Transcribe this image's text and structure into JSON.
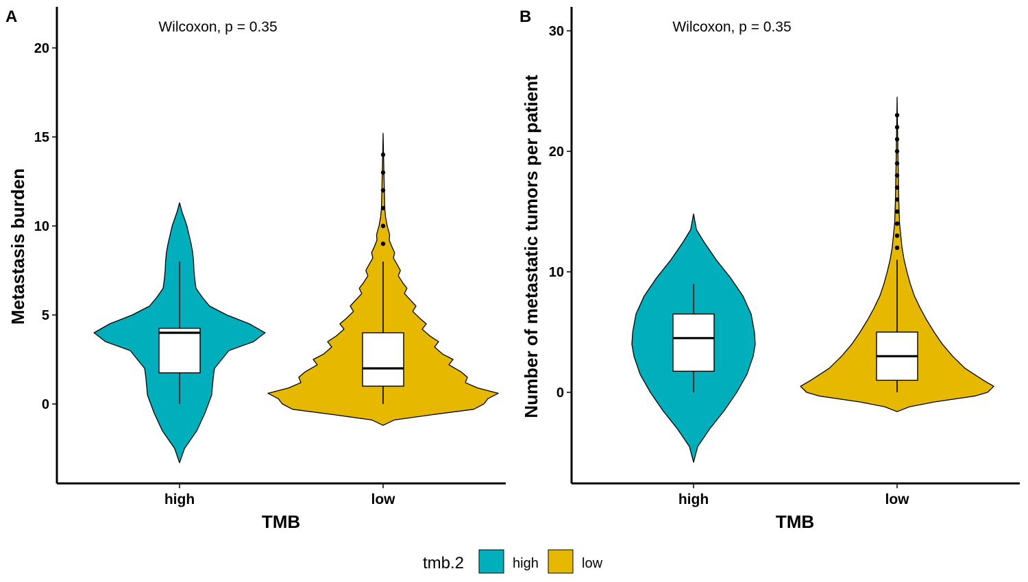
{
  "chart_data": [
    {
      "panel_label": "A",
      "type": "violin",
      "annotation": "Wilcoxon, p = 0.35",
      "xlabel": "TMB",
      "ylabel": "Metastasis burden",
      "categories": [
        "high",
        "low"
      ],
      "yticks": [
        0,
        5,
        10,
        15,
        20
      ],
      "ylim": [
        -4.5,
        22.5
      ],
      "groups": [
        {
          "name": "high",
          "color": "#00AFBB",
          "box": {
            "min": 0,
            "q1": 1.75,
            "median": 4,
            "q3": 4.25,
            "max": 8
          },
          "outliers": [],
          "violin": [
            [
              -3.3,
              0.0
            ],
            [
              -2.5,
              0.12
            ],
            [
              -1.5,
              0.42
            ],
            [
              -0.5,
              0.62
            ],
            [
              0,
              0.7
            ],
            [
              0.5,
              0.78
            ],
            [
              1.5,
              0.82
            ],
            [
              2.0,
              0.85
            ],
            [
              3.0,
              1.2
            ],
            [
              3.5,
              1.8
            ],
            [
              4.0,
              2.08
            ],
            [
              4.5,
              1.7
            ],
            [
              5.0,
              1.15
            ],
            [
              5.5,
              0.73
            ],
            [
              6.0,
              0.55
            ],
            [
              6.5,
              0.4
            ],
            [
              7.0,
              0.37
            ],
            [
              7.5,
              0.35
            ],
            [
              8.0,
              0.34
            ],
            [
              8.5,
              0.32
            ],
            [
              9.0,
              0.28
            ],
            [
              10.0,
              0.18
            ],
            [
              10.8,
              0.06
            ],
            [
              11.3,
              0.0
            ]
          ]
        },
        {
          "name": "low",
          "color": "#E7B800",
          "box": {
            "min": 0,
            "q1": 1,
            "median": 2,
            "q3": 4,
            "max": 8
          },
          "outliers": [
            9,
            10,
            11,
            12,
            13,
            14
          ],
          "violin": [
            [
              -1.2,
              0.0
            ],
            [
              -0.9,
              0.27
            ],
            [
              -0.6,
              1.2
            ],
            [
              -0.3,
              2.2
            ],
            [
              0.0,
              2.45
            ],
            [
              0.3,
              2.55
            ],
            [
              0.6,
              2.8
            ],
            [
              0.9,
              2.3
            ],
            [
              1.2,
              2.0
            ],
            [
              1.5,
              2.05
            ],
            [
              1.8,
              1.9
            ],
            [
              2.2,
              1.6
            ],
            [
              2.5,
              1.7
            ],
            [
              2.8,
              1.45
            ],
            [
              3.2,
              1.25
            ],
            [
              3.5,
              1.35
            ],
            [
              3.8,
              1.15
            ],
            [
              4.2,
              0.95
            ],
            [
              4.5,
              1.05
            ],
            [
              4.8,
              0.9
            ],
            [
              5.2,
              0.72
            ],
            [
              5.5,
              0.8
            ],
            [
              5.8,
              0.68
            ],
            [
              6.2,
              0.52
            ],
            [
              6.5,
              0.58
            ],
            [
              6.8,
              0.48
            ],
            [
              7.2,
              0.37
            ],
            [
              7.5,
              0.42
            ],
            [
              7.8,
              0.35
            ],
            [
              8.2,
              0.25
            ],
            [
              8.5,
              0.28
            ],
            [
              8.8,
              0.22
            ],
            [
              9.2,
              0.15
            ],
            [
              9.5,
              0.16
            ],
            [
              10.0,
              0.1
            ],
            [
              10.5,
              0.06
            ],
            [
              11.0,
              0.04
            ],
            [
              12.0,
              0.03
            ],
            [
              13.0,
              0.02
            ],
            [
              14.0,
              0.01
            ],
            [
              15.2,
              0.0
            ]
          ]
        }
      ]
    },
    {
      "panel_label": "B",
      "type": "violin",
      "annotation": "Wilcoxon, p = 0.35",
      "xlabel": "TMB",
      "ylabel": "Number of metastatic tumors per patient",
      "categories": [
        "high",
        "low"
      ],
      "yticks": [
        0,
        10,
        20,
        30
      ],
      "ylim": [
        -7.5,
        32
      ],
      "groups": [
        {
          "name": "high",
          "color": "#00AFBB",
          "box": {
            "min": 0,
            "q1": 1.75,
            "median": 4.5,
            "q3": 6.5,
            "max": 9
          },
          "outliers": [],
          "violin": [
            [
              -5.8,
              0.0
            ],
            [
              -4.5,
              0.1
            ],
            [
              -3.0,
              0.4
            ],
            [
              -1.5,
              0.75
            ],
            [
              0,
              1.05
            ],
            [
              1.5,
              1.3
            ],
            [
              3.0,
              1.45
            ],
            [
              4.0,
              1.5
            ],
            [
              5.0,
              1.48
            ],
            [
              6.5,
              1.4
            ],
            [
              8.0,
              1.2
            ],
            [
              9.5,
              0.9
            ],
            [
              11.0,
              0.55
            ],
            [
              12.5,
              0.25
            ],
            [
              13.5,
              0.07
            ],
            [
              14.8,
              0.0
            ]
          ]
        },
        {
          "name": "low",
          "color": "#E7B800",
          "box": {
            "min": 0,
            "q1": 1,
            "median": 3,
            "q3": 5,
            "max": 11
          },
          "outliers": [
            12,
            13,
            14,
            15,
            16,
            17,
            18,
            19,
            20,
            21,
            22,
            23
          ],
          "violin": [
            [
              -1.6,
              0.0
            ],
            [
              -1.2,
              0.3
            ],
            [
              -0.8,
              0.9
            ],
            [
              -0.3,
              1.9
            ],
            [
              0,
              2.2
            ],
            [
              0.5,
              2.35
            ],
            [
              1.0,
              2.1
            ],
            [
              2.0,
              1.65
            ],
            [
              3.0,
              1.35
            ],
            [
              4.0,
              1.1
            ],
            [
              5.0,
              0.9
            ],
            [
              6.0,
              0.72
            ],
            [
              7.0,
              0.56
            ],
            [
              8.0,
              0.42
            ],
            [
              9.0,
              0.32
            ],
            [
              10.0,
              0.24
            ],
            [
              11.0,
              0.17
            ],
            [
              12.0,
              0.12
            ],
            [
              13.0,
              0.09
            ],
            [
              14.0,
              0.06
            ],
            [
              16.0,
              0.04
            ],
            [
              18.0,
              0.03
            ],
            [
              20.0,
              0.02
            ],
            [
              22.0,
              0.01
            ],
            [
              24.5,
              0.0
            ]
          ]
        }
      ]
    }
  ],
  "legend": {
    "title": "tmb.2",
    "items": [
      {
        "label": "high",
        "color": "#00AFBB"
      },
      {
        "label": "low",
        "color": "#E7B800"
      }
    ]
  }
}
